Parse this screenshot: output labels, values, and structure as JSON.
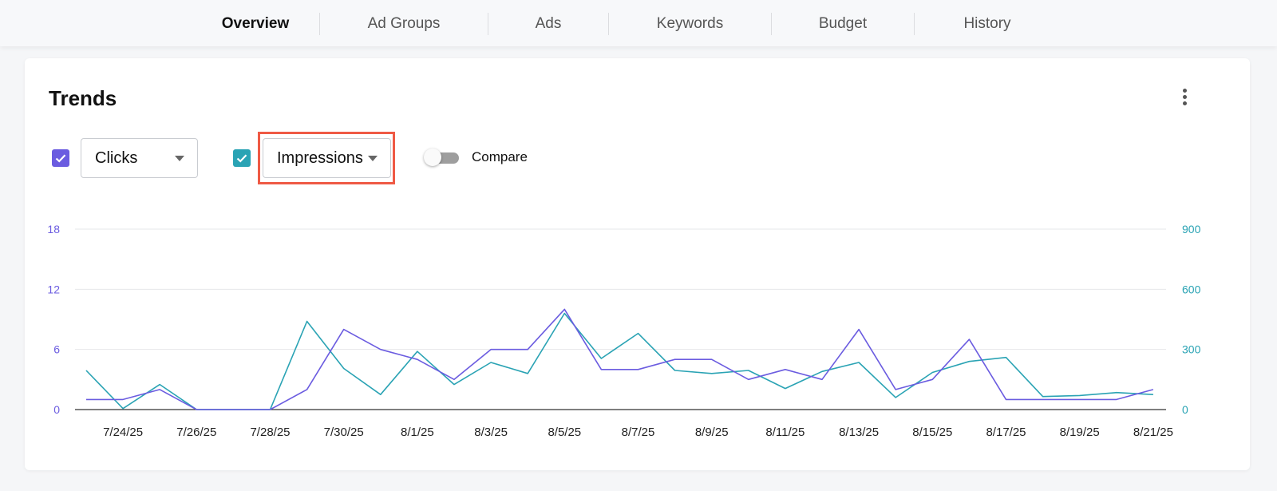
{
  "tabs": [
    {
      "label": "Overview",
      "active": true
    },
    {
      "label": "Ad Groups",
      "active": false
    },
    {
      "label": "Ads",
      "active": false
    },
    {
      "label": "Keywords",
      "active": false
    },
    {
      "label": "Budget",
      "active": false
    },
    {
      "label": "History",
      "active": false
    }
  ],
  "card": {
    "title": "Trends",
    "menu_icon": "kebab-menu-icon"
  },
  "controls": {
    "metric1": {
      "label": "Clicks",
      "checked": true,
      "color": "#6b5ce0"
    },
    "metric2": {
      "label": "Impressions",
      "checked": true,
      "color": "#2aa3b4"
    },
    "compare": {
      "label": "Compare",
      "on": false
    }
  },
  "colors": {
    "highlight": "#ef5a45",
    "clicks": "#6b5ce0",
    "impressions": "#2aa3b4"
  },
  "chart_data": {
    "type": "line",
    "x": [
      "7/23/25",
      "7/24/25",
      "7/25/25",
      "7/26/25",
      "7/27/25",
      "7/28/25",
      "7/29/25",
      "7/30/25",
      "7/31/25",
      "8/1/25",
      "8/2/25",
      "8/3/25",
      "8/4/25",
      "8/5/25",
      "8/6/25",
      "8/7/25",
      "8/8/25",
      "8/9/25",
      "8/10/25",
      "8/11/25",
      "8/12/25",
      "8/13/25",
      "8/14/25",
      "8/15/25",
      "8/16/25",
      "8/17/25",
      "8/18/25",
      "8/19/25",
      "8/20/25",
      "8/21/25"
    ],
    "x_tick_labels": [
      "7/24/25",
      "7/26/25",
      "7/28/25",
      "7/30/25",
      "8/1/25",
      "8/3/25",
      "8/5/25",
      "8/7/25",
      "8/9/25",
      "8/11/25",
      "8/13/25",
      "8/15/25",
      "8/17/25",
      "8/19/25",
      "8/21/25"
    ],
    "series": [
      {
        "name": "Clicks",
        "axis": "left",
        "color": "#6b5ce0",
        "values": [
          1,
          1,
          2,
          0,
          0,
          0,
          2,
          8,
          6,
          5,
          3,
          6,
          6,
          10,
          4,
          4,
          5,
          5,
          3,
          4,
          3,
          8,
          2,
          3,
          7,
          1,
          1,
          1,
          1,
          2
        ]
      },
      {
        "name": "Impressions",
        "axis": "right",
        "color": "#2aa3b4",
        "values": [
          195,
          5,
          125,
          0,
          0,
          0,
          440,
          205,
          75,
          290,
          125,
          235,
          180,
          480,
          255,
          380,
          195,
          180,
          195,
          105,
          190,
          235,
          60,
          185,
          240,
          260,
          65,
          70,
          85,
          75
        ]
      }
    ],
    "y_left": {
      "ticks": [
        "0",
        "6",
        "12",
        "18"
      ],
      "range": [
        0,
        18
      ],
      "color": "#6b5ce0"
    },
    "y_right": {
      "ticks": [
        "0",
        "300",
        "600",
        "900"
      ],
      "range": [
        0,
        900
      ],
      "color": "#2aa3b4"
    },
    "grid": true
  }
}
